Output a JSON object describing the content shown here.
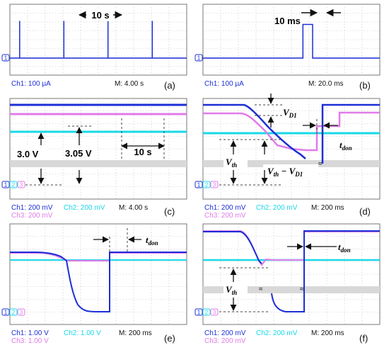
{
  "colors": {
    "ch1": "#1c2fd6",
    "ch2": "#19d8e8",
    "ch3": "#e07be8",
    "grid": "#8a8a8a",
    "band": "#d8d8d8",
    "text": "#1a1a1a"
  },
  "chart_data": [
    {
      "id": "a",
      "type": "line",
      "panel_label": "(a)",
      "channels_shown": [
        "1"
      ],
      "series": [
        {
          "channel": "Ch1",
          "x_s": [
            0,
            2.2,
            2.2,
            2.2,
            12.2,
            12.2,
            12.2,
            22.2,
            22.2,
            22.2,
            32.2,
            32.2,
            32.2,
            40
          ],
          "y_div": [
            0,
            0,
            4.2,
            0,
            0,
            4.2,
            0,
            0,
            4.2,
            0,
            0,
            4.2,
            0,
            0
          ]
        }
      ],
      "footer": {
        "ch1": "Ch1: 100 µA",
        "time": "M: 4.00 s"
      },
      "annotations": {
        "period": "10 s"
      }
    },
    {
      "id": "b",
      "type": "line",
      "panel_label": "(b)",
      "channels_shown": [
        "1"
      ],
      "series": [
        {
          "channel": "Ch1",
          "x_ms": [
            0,
            113,
            113,
            124,
            124,
            200
          ],
          "y_div": [
            0,
            0,
            3.8,
            3.8,
            0,
            0
          ]
        }
      ],
      "footer": {
        "ch1": "Ch1: 100 µA",
        "time": "M: 20.0 ms"
      },
      "annotations": {
        "width": "10 ms"
      }
    },
    {
      "id": "c",
      "type": "line",
      "panel_label": "(c)",
      "channels_shown": [
        "1",
        "2",
        "3"
      ],
      "series": [
        {
          "channel": "Ch1",
          "x_s": [
            0,
            40
          ],
          "y_V": [
            3.75,
            3.75
          ]
        },
        {
          "channel": "Ch3",
          "x_s": [
            0,
            40
          ],
          "y_V": [
            3.05,
            3.05
          ]
        },
        {
          "channel": "Ch2",
          "x_s": [
            0,
            40
          ],
          "y_V": [
            3.0,
            3.0
          ]
        }
      ],
      "footer": {
        "ch1": "Ch1: 200 mV",
        "ch2": "Ch2: 200 mV",
        "ch3": "Ch3: 200 mV",
        "time": "M: 4.00 s"
      },
      "annotations": {
        "v1": "3.0 V",
        "v2": "3.05 V",
        "period": "10 s"
      }
    },
    {
      "id": "d",
      "type": "line",
      "panel_label": "(d)",
      "channels_shown": [
        "1",
        "2",
        "3"
      ],
      "footer": {
        "ch1": "Ch1: 200 mV",
        "ch2": "Ch2: 200 mV",
        "ch3": "Ch3: 200 mV",
        "time": "M: 200 ms"
      },
      "annotations": {
        "vd1": "V",
        "vd1_sub": "D1",
        "tdon": "t",
        "tdon_sub": "don",
        "vth": "V",
        "vth_sub": "th",
        "vth_minus": "V",
        "vth_minus_sub": "th",
        "vth_minus_mid": " − V",
        "vth_minus_sub2": "D1"
      }
    },
    {
      "id": "e",
      "type": "line",
      "panel_label": "(e)",
      "channels_shown": [
        "1",
        "2",
        "3"
      ],
      "footer": {
        "ch1": "Ch1: 1.00 V",
        "ch2": "Ch2: 1.00 V",
        "ch3": "Ch3: 1.00 V",
        "time": "M: 200 ms"
      },
      "annotations": {
        "tdon": "t",
        "tdon_sub": "don"
      }
    },
    {
      "id": "f",
      "type": "line",
      "panel_label": "(f)",
      "channels_shown": [
        "1",
        "2",
        "3"
      ],
      "footer": {
        "ch1": "Ch1: 200 mV",
        "ch2": "Ch2: 200 mV",
        "ch3": "Ch3: 200 mV",
        "time": "M: 200 ms"
      },
      "annotations": {
        "tdon": "t",
        "tdon_sub": "don",
        "vth": "V",
        "vth_sub": "th"
      }
    }
  ]
}
